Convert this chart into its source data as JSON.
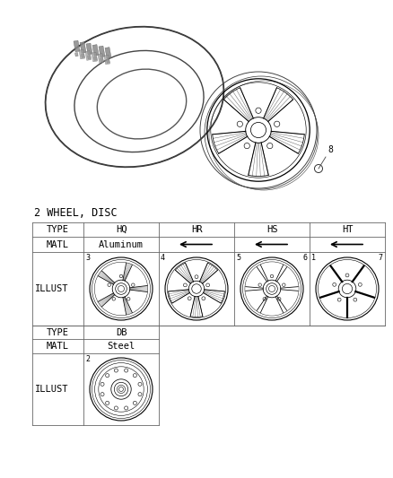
{
  "title": "2 WHEEL, DISC",
  "bg_color": "#ffffff",
  "font_color": "#000000",
  "line_color": "#000000",
  "table_line_color": "#666666",
  "item_number_8": "8",
  "col_labels": [
    "TYPE",
    "HQ",
    "HR",
    "HS",
    "HT"
  ],
  "matl_label": "MATL",
  "aluminum_label": "Aluminum",
  "illust_label": "ILLUST",
  "type2": "DB",
  "matl2": "Steel",
  "part_nums_top_row": [
    "3",
    "4",
    "5",
    "6",
    "1",
    "7"
  ],
  "part_num_steel": "2"
}
